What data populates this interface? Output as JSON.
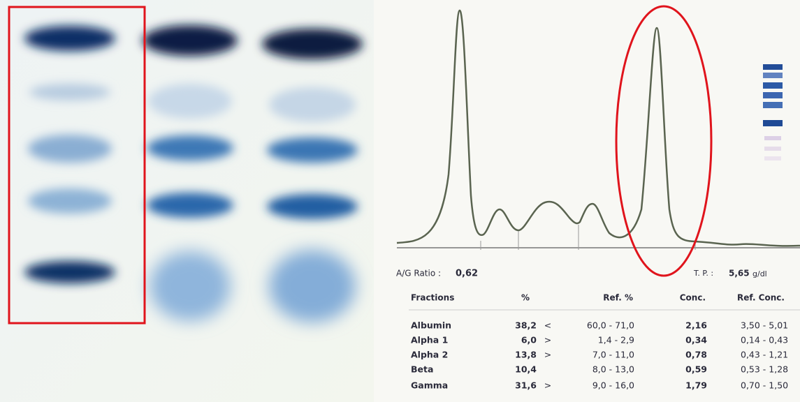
{
  "report": {
    "ag_ratio_label": "A/G Ratio :",
    "ag_ratio": "0,62",
    "tp_label": "T. P. :",
    "tp_value": "5,65",
    "tp_unit": "g/dl",
    "table": {
      "headers": [
        "Fractions",
        "%",
        "Ref. %",
        "Conc.",
        "Ref. Conc."
      ],
      "rows": [
        {
          "fraction": "Albumin",
          "percent": "38,2",
          "flag": "<",
          "ref_percent": "60,0 - 71,0",
          "conc": "2,16",
          "ref_conc": "3,50 - 5,01"
        },
        {
          "fraction": "Alpha 1",
          "percent": "6,0",
          "flag": ">",
          "ref_percent": "1,4 -  2,9",
          "conc": "0,34",
          "ref_conc": "0,14 - 0,43"
        },
        {
          "fraction": "Alpha 2",
          "percent": "13,8",
          "flag": ">",
          "ref_percent": "7,0 - 11,0",
          "conc": "0,78",
          "ref_conc": "0,43 - 1,21"
        },
        {
          "fraction": "Beta",
          "percent": "10,4",
          "ref_percent": "8,0 - 13,0",
          "conc": "0,59",
          "ref_conc": "0,53 - 1,28"
        },
        {
          "fraction": "Gamma",
          "percent": "31,6",
          "flag": ">",
          "ref_percent": "9,0 - 16,0",
          "conc": "1,79",
          "ref_conc": "0,70 - 1,50"
        }
      ]
    }
  }
}
